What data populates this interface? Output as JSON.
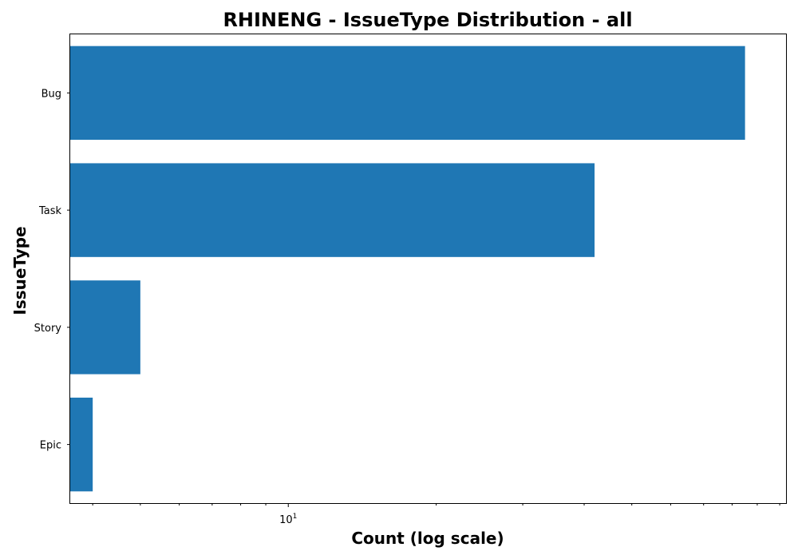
{
  "chart_data": {
    "type": "bar",
    "orientation": "horizontal",
    "title": "RHINENG - IssueType Distribution - all",
    "xlabel": "Count (log scale)",
    "ylabel": "IssueType",
    "x_scale": "log",
    "xlim": [
      3.6,
      103
    ],
    "categories": [
      "Epic",
      "Story",
      "Task",
      "Bug"
    ],
    "values": [
      4,
      5,
      42,
      85
    ],
    "x_major_ticks": [
      {
        "value": 10,
        "base": "10",
        "exponent": "1"
      }
    ],
    "x_minor_ticks": [
      4,
      5,
      6,
      7,
      8,
      9,
      20,
      30,
      40,
      50,
      60,
      70,
      80,
      90,
      100
    ],
    "bar_color": "#1f77b4",
    "grid": false,
    "legend": "none"
  }
}
